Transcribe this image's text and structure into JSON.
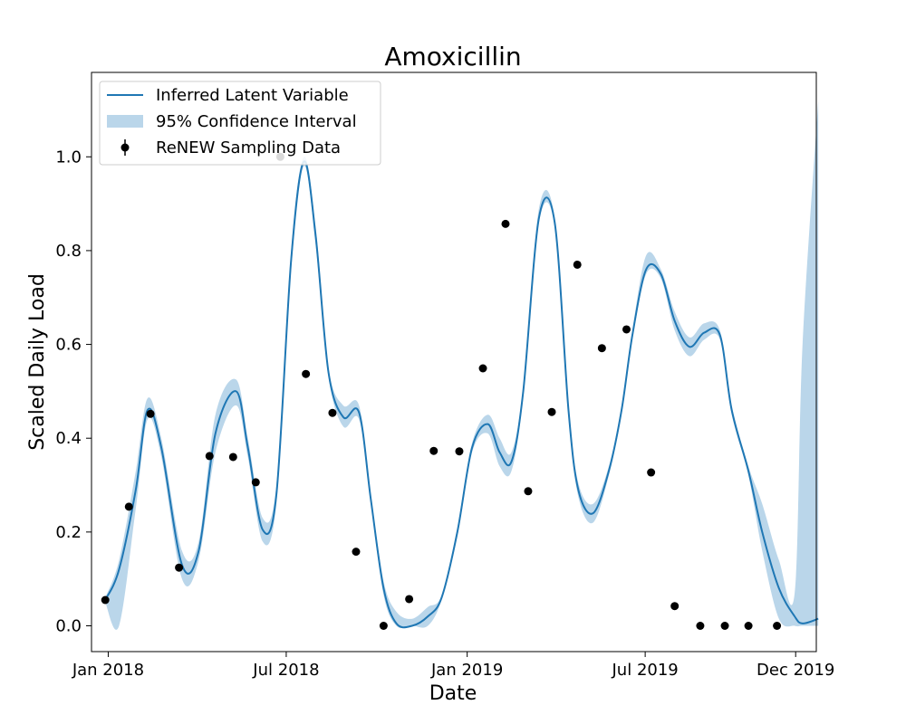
{
  "chart_data": {
    "type": "line",
    "title": "Amoxicillin",
    "xlabel": "Date",
    "ylabel": "Scaled Daily Load",
    "xlim": [
      "2017-12-15",
      "2019-12-22"
    ],
    "ylim": [
      -0.055,
      1.18
    ],
    "grid": false,
    "legend_position": "top-left",
    "x_ticks": [
      {
        "date": "2018-01-01",
        "label": "Jan 2018"
      },
      {
        "date": "2018-07-01",
        "label": "Jul 2018"
      },
      {
        "date": "2019-01-01",
        "label": "Jan 2019"
      },
      {
        "date": "2019-07-01",
        "label": "Jul 2019"
      },
      {
        "date": "2019-12-01",
        "label": "Dec 2019"
      }
    ],
    "y_ticks": [
      {
        "value": 0.0,
        "label": "0.0"
      },
      {
        "value": 0.2,
        "label": "0.2"
      },
      {
        "value": 0.4,
        "label": "0.4"
      },
      {
        "value": 0.6,
        "label": "0.6"
      },
      {
        "value": 0.8,
        "label": "0.8"
      },
      {
        "value": 1.0,
        "label": "1.0"
      }
    ],
    "colors": {
      "line": "#1f77b4",
      "band": "#bad6ea",
      "points": "#000000"
    },
    "series": [
      {
        "name": "Inferred Latent Variable",
        "kind": "line",
        "x": [
          "2017-12-29",
          "2018-01-12",
          "2018-01-29",
          "2018-02-10",
          "2018-02-24",
          "2018-03-17",
          "2018-04-03",
          "2018-04-20",
          "2018-05-11",
          "2018-05-23",
          "2018-06-07",
          "2018-06-21",
          "2018-07-06",
          "2018-07-19",
          "2018-07-31",
          "2018-08-13",
          "2018-08-28",
          "2018-09-13",
          "2018-09-25",
          "2018-10-08",
          "2018-10-21",
          "2018-11-06",
          "2018-11-22",
          "2018-12-06",
          "2018-12-22",
          "2019-01-06",
          "2019-01-22",
          "2019-02-03",
          "2019-02-15",
          "2019-02-27",
          "2019-03-15",
          "2019-03-31",
          "2019-04-14",
          "2019-04-24",
          "2019-05-09",
          "2019-05-25",
          "2019-06-07",
          "2019-06-18",
          "2019-07-02",
          "2019-07-17",
          "2019-07-31",
          "2019-08-15",
          "2019-08-30",
          "2019-09-15",
          "2019-09-27",
          "2019-10-14",
          "2019-10-28",
          "2019-11-14",
          "2019-11-30",
          "2019-12-08",
          "2019-12-24"
        ],
        "y": [
          0.055,
          0.12,
          0.29,
          0.46,
          0.38,
          0.13,
          0.16,
          0.41,
          0.5,
          0.38,
          0.205,
          0.28,
          0.78,
          0.99,
          0.83,
          0.54,
          0.445,
          0.455,
          0.27,
          0.08,
          0.005,
          0.0,
          0.02,
          0.06,
          0.2,
          0.38,
          0.43,
          0.37,
          0.35,
          0.5,
          0.87,
          0.86,
          0.46,
          0.29,
          0.24,
          0.33,
          0.46,
          0.62,
          0.76,
          0.75,
          0.65,
          0.595,
          0.625,
          0.62,
          0.46,
          0.33,
          0.2,
          0.08,
          0.02,
          0.005,
          0.015
        ]
      },
      {
        "name": "95% Confidence Interval",
        "kind": "band",
        "x": [
          "2017-12-29",
          "2018-01-12",
          "2018-01-29",
          "2018-02-10",
          "2018-02-24",
          "2018-03-17",
          "2018-04-03",
          "2018-04-20",
          "2018-05-11",
          "2018-05-23",
          "2018-06-07",
          "2018-06-21",
          "2018-07-06",
          "2018-07-19",
          "2018-07-31",
          "2018-08-13",
          "2018-08-28",
          "2018-09-13",
          "2018-09-25",
          "2018-10-08",
          "2018-10-21",
          "2018-11-06",
          "2018-11-22",
          "2018-12-06",
          "2018-12-22",
          "2019-01-06",
          "2019-01-22",
          "2019-02-03",
          "2019-02-15",
          "2019-02-27",
          "2019-03-15",
          "2019-03-31",
          "2019-04-14",
          "2019-04-24",
          "2019-05-09",
          "2019-05-25",
          "2019-06-07",
          "2019-06-18",
          "2019-07-02",
          "2019-07-17",
          "2019-07-31",
          "2019-08-15",
          "2019-08-30",
          "2019-09-15",
          "2019-09-27",
          "2019-10-14",
          "2019-10-28",
          "2019-11-14",
          "2019-11-30",
          "2019-12-08",
          "2019-12-24"
        ],
        "lower": [
          0.05,
          0.0,
          0.25,
          0.44,
          0.36,
          0.1,
          0.14,
          0.37,
          0.47,
          0.36,
          0.18,
          0.26,
          0.76,
          0.98,
          0.81,
          0.53,
          0.425,
          0.44,
          0.26,
          0.065,
          0.0,
          0.0,
          0.0,
          0.055,
          0.19,
          0.37,
          0.41,
          0.34,
          0.33,
          0.49,
          0.86,
          0.85,
          0.45,
          0.275,
          0.22,
          0.32,
          0.45,
          0.61,
          0.75,
          0.74,
          0.63,
          0.575,
          0.61,
          0.61,
          0.45,
          0.32,
          0.16,
          0.015,
          0.0,
          0.0,
          0.0
        ],
        "upper": [
          0.06,
          0.14,
          0.33,
          0.485,
          0.4,
          0.16,
          0.18,
          0.45,
          0.525,
          0.4,
          0.23,
          0.3,
          0.8,
          1.0,
          0.85,
          0.55,
          0.47,
          0.47,
          0.28,
          0.095,
          0.03,
          0.015,
          0.04,
          0.065,
          0.21,
          0.39,
          0.45,
          0.4,
          0.37,
          0.51,
          0.89,
          0.87,
          0.47,
          0.305,
          0.26,
          0.34,
          0.47,
          0.63,
          0.79,
          0.76,
          0.67,
          0.615,
          0.645,
          0.63,
          0.47,
          0.34,
          0.26,
          0.14,
          0.07,
          0.6,
          1.12
        ]
      },
      {
        "name": "ReNEW Sampling Data",
        "kind": "scatter",
        "x": [
          "2017-12-29",
          "2018-01-22",
          "2018-02-13",
          "2018-03-14",
          "2018-04-14",
          "2018-05-08",
          "2018-05-31",
          "2018-06-25",
          "2018-07-21",
          "2018-08-17",
          "2018-09-10",
          "2018-10-08",
          "2018-11-03",
          "2018-11-28",
          "2018-12-24",
          "2019-01-17",
          "2019-02-09",
          "2019-03-04",
          "2019-03-28",
          "2019-04-23",
          "2019-05-18",
          "2019-06-12",
          "2019-07-07",
          "2019-07-31",
          "2019-08-26",
          "2019-09-20",
          "2019-10-14",
          "2019-11-12"
        ],
        "y": [
          0.055,
          0.254,
          0.452,
          0.124,
          0.362,
          0.36,
          0.306,
          1.0,
          0.537,
          0.454,
          0.158,
          0.0,
          0.057,
          0.373,
          0.372,
          0.549,
          0.857,
          0.287,
          0.456,
          0.77,
          0.592,
          0.632,
          0.327,
          0.042,
          0.0,
          0.0,
          0.0,
          0.0
        ]
      }
    ]
  }
}
